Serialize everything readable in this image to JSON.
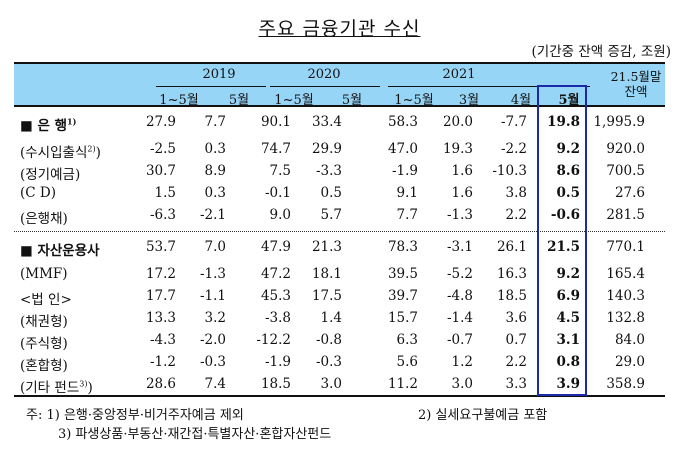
{
  "title": "주요 금융기관 수신",
  "unit": "(기간중 잔액 증감, 조원)",
  "header": {
    "years": [
      "2019",
      "2020",
      "2021"
    ],
    "months": [
      "1~5월",
      "5월",
      "1~5월",
      "5월",
      "1~5월",
      "3월",
      "4월",
      "5월"
    ],
    "balance_label_1": "21.5월말",
    "balance_label_2": "잔액"
  },
  "rows": [
    {
      "label": "■ 은  행",
      "sup": "1)",
      "type": "main",
      "values": [
        "27.9",
        "7.7",
        "90.1",
        "33.4",
        "58.3",
        "20.0",
        "-7.7",
        "19.8",
        "1,995.9"
      ]
    },
    {
      "label": "(수시입출식",
      "sup": "2)",
      "suffix": ")",
      "type": "sub",
      "values": [
        "-2.5",
        "0.3",
        "74.7",
        "29.9",
        "47.0",
        "19.3",
        "-2.2",
        "9.2",
        "920.0"
      ]
    },
    {
      "label": "(정기예금)",
      "type": "sub",
      "values": [
        "30.7",
        "8.9",
        "7.5",
        "-3.3",
        "-1.9",
        "1.6",
        "-10.3",
        "8.6",
        "700.5"
      ]
    },
    {
      "label": "(C  D)",
      "type": "sub",
      "values": [
        "1.5",
        "0.3",
        "-0.1",
        "0.5",
        "9.1",
        "1.6",
        "3.8",
        "0.5",
        "27.6"
      ]
    },
    {
      "label": "(은행채)",
      "type": "sub",
      "values": [
        "-6.3",
        "-2.1",
        "9.0",
        "5.7",
        "7.7",
        "-1.3",
        "2.2",
        "-0.6",
        "281.5"
      ]
    },
    {
      "label": "■ 자산운용사",
      "type": "main",
      "values": [
        "53.7",
        "7.0",
        "47.9",
        "21.3",
        "78.3",
        "-3.1",
        "26.1",
        "21.5",
        "770.1"
      ]
    },
    {
      "label": "(MMF)",
      "type": "sub",
      "values": [
        "17.2",
        "-1.3",
        "47.2",
        "18.1",
        "39.5",
        "-5.2",
        "16.3",
        "9.2",
        "165.4"
      ]
    },
    {
      "label": " <법  인>",
      "type": "sub",
      "values": [
        "17.7",
        "-1.1",
        "45.3",
        "17.5",
        "39.7",
        "-4.8",
        "18.5",
        "6.9",
        "140.3"
      ]
    },
    {
      "label": "(채권형)",
      "type": "sub",
      "values": [
        "13.3",
        "3.2",
        "-3.8",
        "1.4",
        "15.7",
        "-1.4",
        "3.6",
        "4.5",
        "132.8"
      ]
    },
    {
      "label": "(주식형)",
      "type": "sub",
      "values": [
        "-4.3",
        "-2.0",
        "-12.2",
        "-0.8",
        "6.3",
        "-0.7",
        "0.7",
        "3.1",
        "84.0"
      ]
    },
    {
      "label": "(혼합형)",
      "type": "sub",
      "values": [
        "-1.2",
        "-0.3",
        "-1.9",
        "-0.3",
        "5.6",
        "1.2",
        "2.2",
        "0.8",
        "29.0"
      ]
    },
    {
      "label": "(기타 펀드",
      "sup": "3)",
      "suffix": ")",
      "type": "sub",
      "values": [
        "28.6",
        "7.4",
        "18.5",
        "3.0",
        "11.2",
        "3.0",
        "3.3",
        "3.9",
        "358.9"
      ]
    }
  ],
  "notes": {
    "note1": "주: 1) 은행·중앙정부·비거주자예금 제외",
    "note2": "2) 실세요구불예금 포함",
    "note3": "3) 파생상품·부동산·재간접·특별자산·혼합자산펀드"
  },
  "colors": {
    "header_bg": "#97d5f6",
    "highlight_box": "#1a2aa8"
  }
}
